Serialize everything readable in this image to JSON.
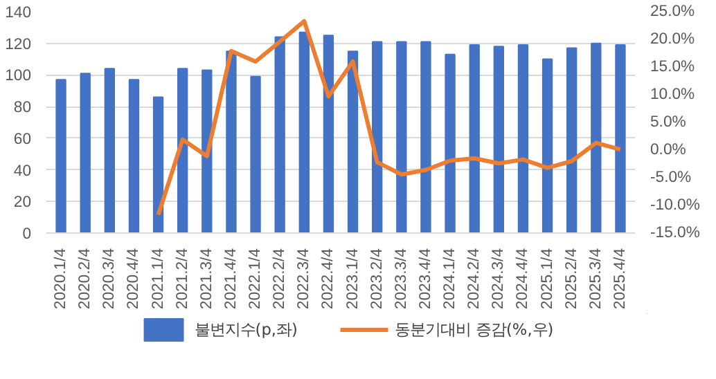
{
  "chart_data": {
    "type": "bar",
    "categories": [
      "2020.1/4",
      "2020.2/4",
      "2020.3/4",
      "2020.4/4",
      "2021.1/4",
      "2021.2/4",
      "2021.3/4",
      "2021.4/4",
      "2022.1/4",
      "2022.2/4",
      "2022.3/4",
      "2022.4/4",
      "2023.1/4",
      "2023.2/4",
      "2023.3/4",
      "2023.4/4",
      "2024.1/4",
      "2024.2/4",
      "2024.3/4",
      "2024.4/4",
      "2025.1/4",
      "2025.2/4",
      "2025.3/4",
      "2025.4/4"
    ],
    "series": [
      {
        "name": "불변지수(p,좌)",
        "color": "#4472c4",
        "values": [
          97,
          101,
          104,
          97,
          86,
          104,
          103,
          115,
          99,
          124,
          127,
          125,
          115,
          121,
          121,
          121,
          113,
          119,
          118,
          119,
          110,
          117,
          120,
          119
        ]
      },
      {
        "name": "동분기대비 증감(%,우)",
        "type": "line",
        "axis": "y2",
        "color": "#ed7d31",
        "values": [
          null,
          null,
          null,
          null,
          -11.7,
          1.9,
          -1.1,
          17.9,
          16.0,
          19.6,
          23.3,
          9.7,
          16.0,
          -2.2,
          -4.4,
          -3.6,
          -1.9,
          -1.5,
          -2.4,
          -1.7,
          -3.2,
          -2.0,
          1.3,
          0.1
        ]
      }
    ],
    "ylim": [
      0,
      140
    ],
    "yticks": [
      0,
      20,
      40,
      60,
      80,
      100,
      120,
      140
    ],
    "y2lim": [
      -15,
      25
    ],
    "y2ticks": [
      {
        "value": -15,
        "label": "-15.0%"
      },
      {
        "value": -10,
        "label": "-10.0%"
      },
      {
        "value": -5,
        "label": "-5.0%"
      },
      {
        "value": 0,
        "label": "0.0%"
      },
      {
        "value": 5,
        "label": "5.0%"
      },
      {
        "value": 10,
        "label": "10.0%"
      },
      {
        "value": 15,
        "label": "15.0%"
      },
      {
        "value": 20,
        "label": "20.0%"
      },
      {
        "value": 25,
        "label": "25.0%"
      }
    ],
    "grid": "y",
    "legend": "bottom"
  }
}
